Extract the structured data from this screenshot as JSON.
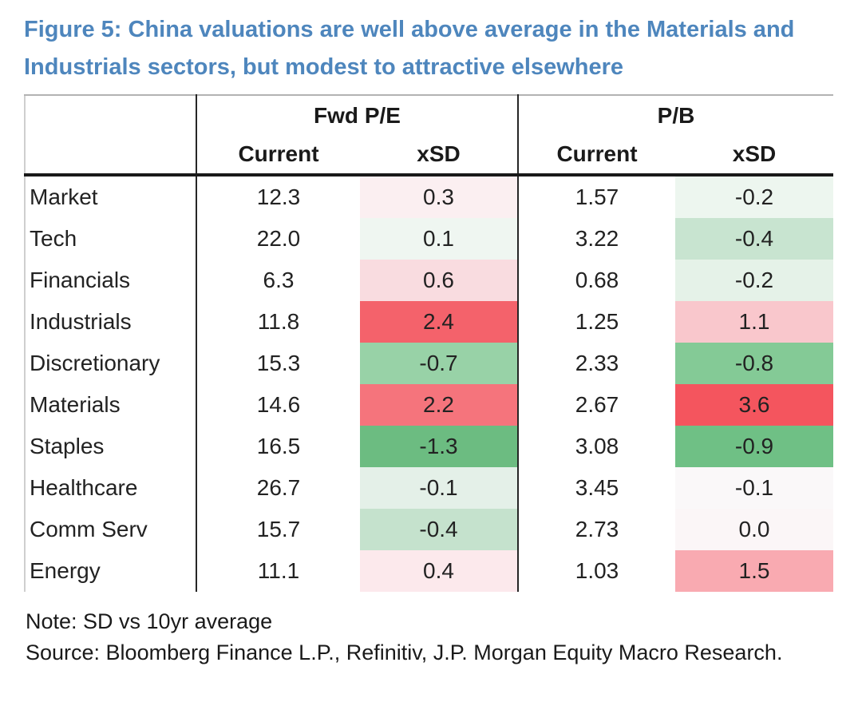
{
  "title_lines": [
    "Figure 5: China valuations are well above average in the Materials and",
    "Industrials sectors, but modest to attractive elsewhere"
  ],
  "chart_data": {
    "type": "table",
    "title": "Figure 5: China valuations are well above average in the Materials and Industrials sectors, but modest to attractive elsewhere",
    "column_groups": [
      "Fwd P/E",
      "P/B"
    ],
    "sub_headers": [
      "Current",
      "xSD",
      "Current",
      "xSD"
    ],
    "row_label_column": "sector",
    "heatmap_columns": [
      "fwd_pe_xsd",
      "pb_xsd"
    ],
    "rows": [
      {
        "sector": "Market",
        "fwd_pe_current": "12.3",
        "fwd_pe_xsd": "0.3",
        "fwd_pe_xsd_bg": "#fbeff1",
        "pb_current": "1.57",
        "pb_xsd": "-0.2",
        "pb_xsd_bg": "#edf6ef"
      },
      {
        "sector": "Tech",
        "fwd_pe_current": "22.0",
        "fwd_pe_xsd": "0.1",
        "fwd_pe_xsd_bg": "#eff6f1",
        "pb_current": "3.22",
        "pb_xsd": "-0.4",
        "pb_xsd_bg": "#c8e4d0"
      },
      {
        "sector": "Financials",
        "fwd_pe_current": "6.3",
        "fwd_pe_xsd": "0.6",
        "fwd_pe_xsd_bg": "#f9dce0",
        "pb_current": "0.68",
        "pb_xsd": "-0.2",
        "pb_xsd_bg": "#e5f2e8"
      },
      {
        "sector": "Industrials",
        "fwd_pe_current": "11.8",
        "fwd_pe_xsd": "2.4",
        "fwd_pe_xsd_bg": "#f4626b",
        "pb_current": "1.25",
        "pb_xsd": "1.1",
        "pb_xsd_bg": "#f9c7cc"
      },
      {
        "sector": "Discretionary",
        "fwd_pe_current": "15.3",
        "fwd_pe_xsd": "-0.7",
        "fwd_pe_xsd_bg": "#98d2a7",
        "pb_current": "2.33",
        "pb_xsd": "-0.8",
        "pb_xsd_bg": "#84ca96"
      },
      {
        "sector": "Materials",
        "fwd_pe_current": "14.6",
        "fwd_pe_xsd": "2.2",
        "fwd_pe_xsd_bg": "#f5747c",
        "pb_current": "2.67",
        "pb_xsd": "3.6",
        "pb_xsd_bg": "#f4555e"
      },
      {
        "sector": "Staples",
        "fwd_pe_current": "16.5",
        "fwd_pe_xsd": "-1.3",
        "fwd_pe_xsd_bg": "#6cbc81",
        "pb_current": "3.08",
        "pb_xsd": "-0.9",
        "pb_xsd_bg": "#6fc085"
      },
      {
        "sector": "Healthcare",
        "fwd_pe_current": "26.7",
        "fwd_pe_xsd": "-0.1",
        "fwd_pe_xsd_bg": "#e4f0e8",
        "pb_current": "3.45",
        "pb_xsd": "-0.1",
        "pb_xsd_bg": "#faf8f9"
      },
      {
        "sector": "Comm Serv",
        "fwd_pe_current": "15.7",
        "fwd_pe_xsd": "-0.4",
        "fwd_pe_xsd_bg": "#c5e2cd",
        "pb_current": "2.73",
        "pb_xsd": "0.0",
        "pb_xsd_bg": "#fbf6f7"
      },
      {
        "sector": "Energy",
        "fwd_pe_current": "11.1",
        "fwd_pe_xsd": "0.4",
        "fwd_pe_xsd_bg": "#fce9ec",
        "pb_current": "1.03",
        "pb_xsd": "1.5",
        "pb_xsd_bg": "#f9aab1"
      }
    ]
  },
  "notes": {
    "note": "Note: SD vs 10yr average",
    "source": "Source: Bloomberg Finance L.P., Refinitiv, J.P. Morgan Equity Macro Research."
  },
  "colors": {
    "title_blue": "#4e86bd",
    "strong_red": "#f4555e",
    "strong_green": "#6cbc81",
    "text": "#1f1f1f"
  }
}
